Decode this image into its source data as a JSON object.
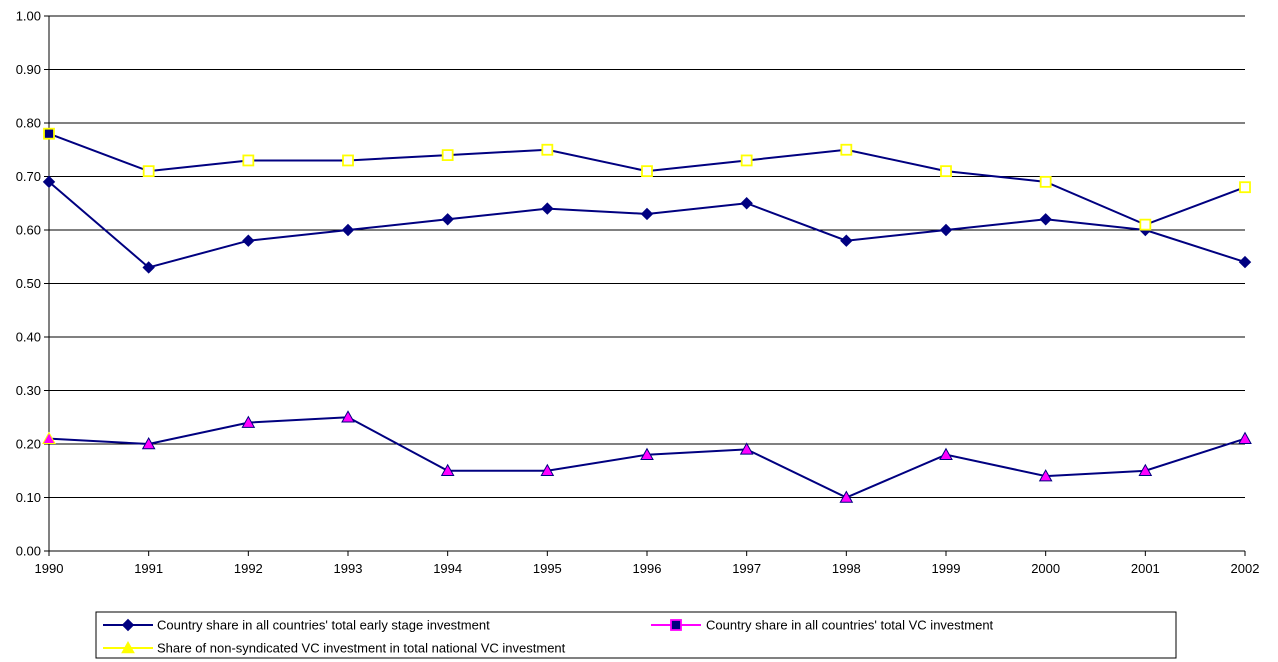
{
  "chart_data": {
    "type": "line",
    "title": "",
    "xlabel": "",
    "ylabel": "",
    "x": [
      "1990",
      "1991",
      "1992",
      "1993",
      "1994",
      "1995",
      "1996",
      "1997",
      "1998",
      "1999",
      "2000",
      "2001",
      "2002"
    ],
    "ylim": [
      0,
      1.0
    ],
    "y_ticks": [
      "0.00",
      "0.10",
      "0.20",
      "0.30",
      "0.40",
      "0.50",
      "0.60",
      "0.70",
      "0.80",
      "0.90",
      "1.00"
    ],
    "grid": true,
    "legend_position": "bottom",
    "series": [
      {
        "name": "Country share in all countries' total early stage investment",
        "values": [
          0.69,
          0.53,
          0.58,
          0.6,
          0.62,
          0.64,
          0.63,
          0.65,
          0.58,
          0.6,
          0.62,
          0.6,
          0.54
        ],
        "line_color": "#000080",
        "marker": "diamond",
        "marker_fill": "#000080",
        "marker_stroke": "#000080"
      },
      {
        "name": "Country share in all countries' total VC investment",
        "values": [
          0.78,
          0.71,
          0.73,
          0.73,
          0.74,
          0.75,
          0.71,
          0.73,
          0.75,
          0.71,
          0.69,
          0.61,
          0.68
        ],
        "line_color": "#000080",
        "legend_line_color": "#FF00FF",
        "marker": "square",
        "marker_fill": "#FFFFFF",
        "marker_stroke": "#FFFF00",
        "legend_marker_fill": "#000080",
        "legend_marker_stroke": "#FF00FF"
      },
      {
        "name": "Share of non-syndicated VC investment in total national VC investment",
        "values": [
          0.21,
          0.2,
          0.24,
          0.25,
          0.15,
          0.15,
          0.18,
          0.19,
          0.1,
          0.18,
          0.14,
          0.15,
          0.21
        ],
        "line_color": "#000080",
        "legend_line_color": "#FFFF00",
        "marker": "triangle",
        "marker_fill": "#FF00FF",
        "marker_stroke": "#000080",
        "legend_marker_fill": "#FFFF00",
        "legend_marker_stroke": "#FFFF00"
      }
    ]
  }
}
